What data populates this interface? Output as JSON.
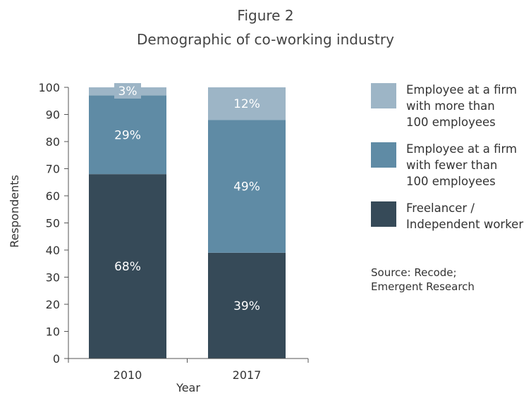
{
  "figure_number": "Figure 2",
  "figure_title": "Demographic of co-working industry",
  "source_lines": [
    "Source: Recode;",
    "Emergent Research"
  ],
  "chart_data": {
    "type": "bar",
    "stacked": true,
    "categories": [
      "2010",
      "2017"
    ],
    "xlabel": "Year",
    "ylabel": "Respondents",
    "ylim": [
      0,
      100
    ],
    "yticks": [
      0,
      10,
      20,
      30,
      40,
      50,
      60,
      70,
      80,
      90,
      100
    ],
    "grid": false,
    "legend_position": "right",
    "series": [
      {
        "name": "Freelancer / Independent worker",
        "legend_lines": [
          "Freelancer /",
          "Independent worker"
        ],
        "values": [
          68,
          39
        ],
        "labels": [
          "68%",
          "39%"
        ],
        "color": "#364a58"
      },
      {
        "name": "Employee at a firm with fewer than 100 employees",
        "legend_lines": [
          "Employee at a firm",
          "with fewer than",
          "100 employees"
        ],
        "values": [
          29,
          49
        ],
        "labels": [
          "29%",
          "49%"
        ],
        "color": "#5f8ba5"
      },
      {
        "name": "Employee at a firm with more than 100 employees",
        "legend_lines": [
          "Employee at a firm",
          "with more than",
          "100 employees"
        ],
        "values": [
          3,
          12
        ],
        "labels": [
          "3%",
          "12%"
        ],
        "color": "#9db5c6"
      }
    ]
  }
}
